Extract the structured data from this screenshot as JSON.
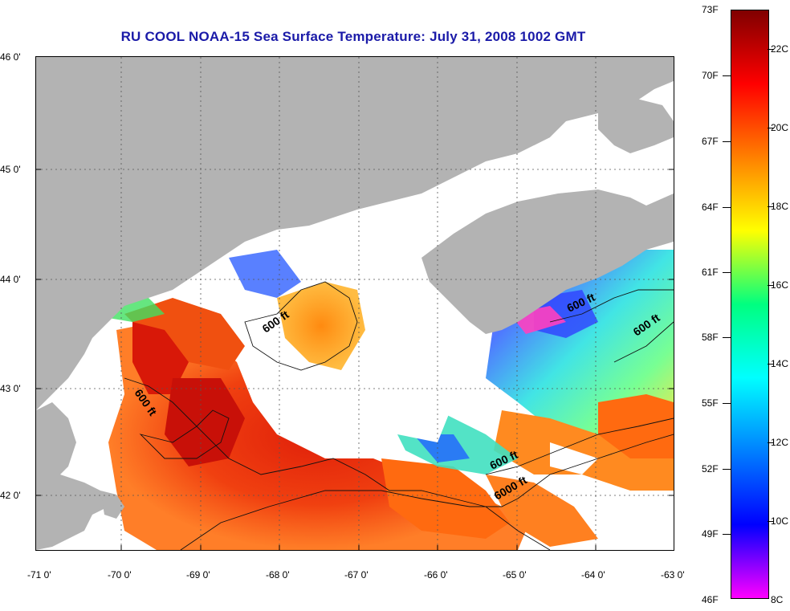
{
  "title": "RU COOL  NOAA-15  Sea Surface Temperature:  July 31, 2008 1002 GMT",
  "latitude_labels": [
    "46 0'",
    "45 0'",
    "44 0'",
    "43 0'",
    "42 0'"
  ],
  "longitude_labels": [
    "-71 0'",
    "-70 0'",
    "-69 0'",
    "-68 0'",
    "-67 0'",
    "-66 0'",
    "-65 0'",
    "-64 0'",
    "-63 0'"
  ],
  "contour_labels": [
    "600 ft",
    "600 ft",
    "600 ft",
    "600 ft",
    "600 ft",
    "6000 ft"
  ],
  "colorbar": {
    "fahrenheit_labels": [
      "73F",
      "70F",
      "67F",
      "64F",
      "61F",
      "58F",
      "55F",
      "52F",
      "49F",
      "46F"
    ],
    "celsius_labels": [
      "22C",
      "20C",
      "18C",
      "16C",
      "14C",
      "12C",
      "10C",
      "8C"
    ],
    "colors": [
      "#800000",
      "#ff0000",
      "#ff8000",
      "#ffff00",
      "#00ff80",
      "#00ffff",
      "#0080ff",
      "#0000ff",
      "#ff00ff"
    ]
  },
  "colors": {
    "land": "#b3b3b3",
    "cloud_mask": "#ffffff",
    "title": "#1a1aa8"
  }
}
